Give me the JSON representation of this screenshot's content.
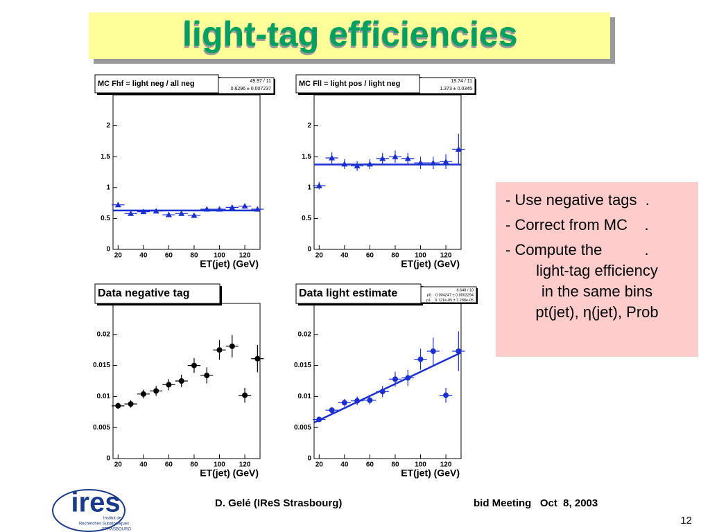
{
  "slide": {
    "title": "light-tag efficiencies",
    "bullets": [
      [
        "- Use negative tags  ."
      ],
      [
        "- Correct from MC    ."
      ],
      [
        "- Compute the          .",
        "light-tag efficiency",
        "in the same bins",
        "pt(jet), η(jet), Prob"
      ]
    ],
    "footer_left": "D. Gelé (IReS Strasbourg)",
    "footer_right": "bid Meeting   Oct  8, 2003",
    "page": "12",
    "logo": "ires",
    "logo_lines": [
      "Institut de",
      "Recherches Subatomiques",
      "STRASBOURG"
    ]
  },
  "chart_data": [
    {
      "type": "scatter",
      "title": "MC Fhf = light neg / all neg",
      "stats": [
        "49.97 / 11",
        "0.6296 ± 0.007237"
      ],
      "x_label": "ET(jet) (GeV)",
      "marker": "triangle",
      "color": "#1a2fd0",
      "x": [
        20,
        30,
        40,
        50,
        60,
        70,
        80,
        90,
        100,
        110,
        120,
        130
      ],
      "values": [
        0.72,
        0.58,
        0.61,
        0.62,
        0.56,
        0.58,
        0.55,
        0.65,
        0.65,
        0.68,
        0.7,
        0.65
      ],
      "errors": [
        0.03,
        0.03,
        0.03,
        0.03,
        0.03,
        0.03,
        0.03,
        0.03,
        0.03,
        0.03,
        0.03,
        0.04
      ],
      "fit": {
        "p0": 0.6296
      },
      "xlim": [
        16,
        132
      ],
      "ylim": [
        0,
        2.5
      ],
      "xticks": [
        20,
        40,
        60,
        80,
        100,
        120
      ],
      "yticks": [
        0,
        0.5,
        1,
        1.5,
        2
      ]
    },
    {
      "type": "scatter",
      "title": "MC Fll = light pos / light neg",
      "stats": [
        "19.74 / 11",
        "1.373 ± 0.0345"
      ],
      "x_label": "ET(jet) (GeV)",
      "marker": "triangle",
      "color": "#1a2fd0",
      "x": [
        20,
        30,
        40,
        50,
        60,
        70,
        80,
        90,
        100,
        110,
        120,
        130
      ],
      "values": [
        1.03,
        1.48,
        1.38,
        1.35,
        1.38,
        1.47,
        1.5,
        1.47,
        1.4,
        1.4,
        1.42,
        1.62
      ],
      "errors": [
        0.06,
        0.09,
        0.08,
        0.08,
        0.08,
        0.09,
        0.1,
        0.09,
        0.1,
        0.1,
        0.12,
        0.25
      ],
      "fit": {
        "p0": 1.373
      },
      "xlim": [
        16,
        132
      ],
      "ylim": [
        0,
        2.5
      ],
      "xticks": [
        20,
        40,
        60,
        80,
        100,
        120
      ],
      "yticks": [
        0,
        0.5,
        1,
        1.5,
        2
      ]
    },
    {
      "type": "scatter",
      "title": "Data negative tag",
      "x_label": "ET(jet) (GeV)",
      "marker": "circle",
      "color": "#000000",
      "x": [
        20,
        30,
        40,
        50,
        60,
        70,
        80,
        90,
        100,
        110,
        120,
        130
      ],
      "values": [
        0.0085,
        0.0088,
        0.0104,
        0.0109,
        0.0119,
        0.0125,
        0.015,
        0.0134,
        0.0175,
        0.0181,
        0.0102,
        0.0161
      ],
      "errors": [
        0.0005,
        0.0006,
        0.0007,
        0.0008,
        0.0009,
        0.001,
        0.0012,
        0.0013,
        0.0016,
        0.0018,
        0.0012,
        0.0022
      ],
      "xlim": [
        16,
        132
      ],
      "ylim": [
        0,
        0.025
      ],
      "xticks": [
        20,
        40,
        60,
        80,
        100,
        120
      ],
      "yticks": [
        0,
        0.005,
        0.01,
        0.015,
        0.02
      ]
    },
    {
      "type": "scatter",
      "title": "Data light estimate",
      "stats": [
        "6.648 / 10",
        "p0    0.004247 ± 0.0003294",
        "p1    9.721e-05 ± 1.288e-05"
      ],
      "x_label": "ET(jet) (GeV)",
      "marker": "circle",
      "color": "#1a2fd0",
      "x": [
        20,
        30,
        40,
        50,
        60,
        70,
        80,
        90,
        100,
        110,
        120,
        130
      ],
      "values": [
        0.0063,
        0.0078,
        0.009,
        0.0093,
        0.0094,
        0.0108,
        0.0128,
        0.013,
        0.016,
        0.0173,
        0.0102,
        0.0173
      ],
      "errors": [
        0.0004,
        0.0005,
        0.0006,
        0.0007,
        0.0007,
        0.0009,
        0.0012,
        0.0013,
        0.0017,
        0.0022,
        0.0012,
        0.0032
      ],
      "fit": {
        "p0": 0.004247,
        "p1": 9.721e-05
      },
      "xlim": [
        16,
        132
      ],
      "ylim": [
        0,
        0.025
      ],
      "xticks": [
        20,
        40,
        60,
        80,
        100,
        120
      ],
      "yticks": [
        0,
        0.005,
        0.01,
        0.015,
        0.02
      ]
    }
  ]
}
